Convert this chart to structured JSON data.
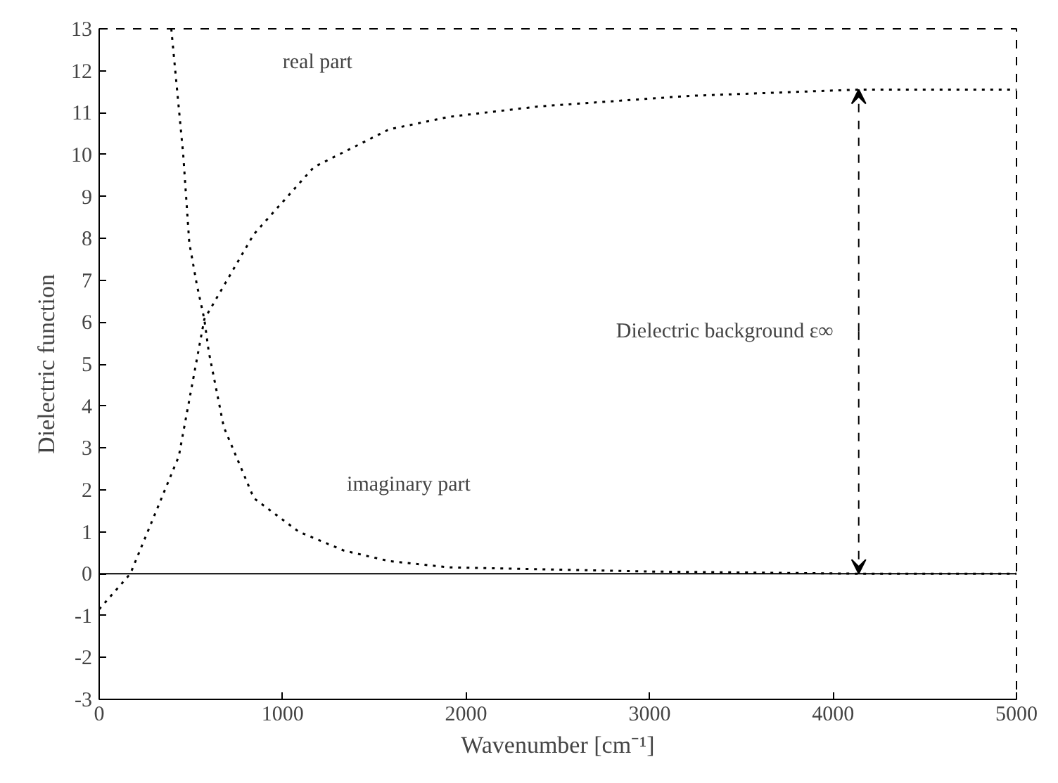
{
  "chart_data": {
    "type": "line",
    "xlabel": "Wavenumber [cm⁻¹]",
    "ylabel": "Dielectric function",
    "xlim": [
      0,
      5000
    ],
    "xticks": [
      0,
      1000,
      2000,
      3000,
      4000,
      5000
    ],
    "ylim": [
      -3,
      13
    ],
    "yticks": [
      -3,
      -2,
      -1,
      0,
      1,
      2,
      3,
      4,
      5,
      6,
      7,
      8,
      9,
      10,
      11,
      12,
      13
    ],
    "grid": false,
    "line_style": "dotted",
    "marker": "none",
    "series": [
      {
        "color": "#000000",
        "x": [
          0,
          170,
          434,
          573,
          843,
          1170,
          1580,
          1907,
          2400,
          3216,
          4140,
          5000
        ],
        "values": [
          -0.85,
          0,
          2.8,
          6.07,
          8.1,
          9.7,
          10.6,
          10.9,
          11.15,
          11.4,
          11.55,
          11.55
        ]
      },
      {
        "color": "#000000",
        "x": [
          393,
          458,
          491,
          532,
          573,
          597,
          679,
          843,
          1088,
          1334,
          1580,
          1907,
          3000,
          4100,
          5000
        ],
        "values": [
          13,
          10,
          7.9,
          6.9,
          6.07,
          5.3,
          3.5,
          1.8,
          1.0,
          0.55,
          0.3,
          0.15,
          0.05,
          0,
          0
        ]
      }
    ],
    "ref_lines": [
      {
        "axis": "y",
        "value": 0,
        "color": "#000000",
        "line_style": "solid"
      }
    ],
    "annotations": [
      "real part",
      "imaginary part",
      {
        "text": "Dielectric background ε∞",
        "x": 4140,
        "y": 11.55
      }
    ]
  }
}
